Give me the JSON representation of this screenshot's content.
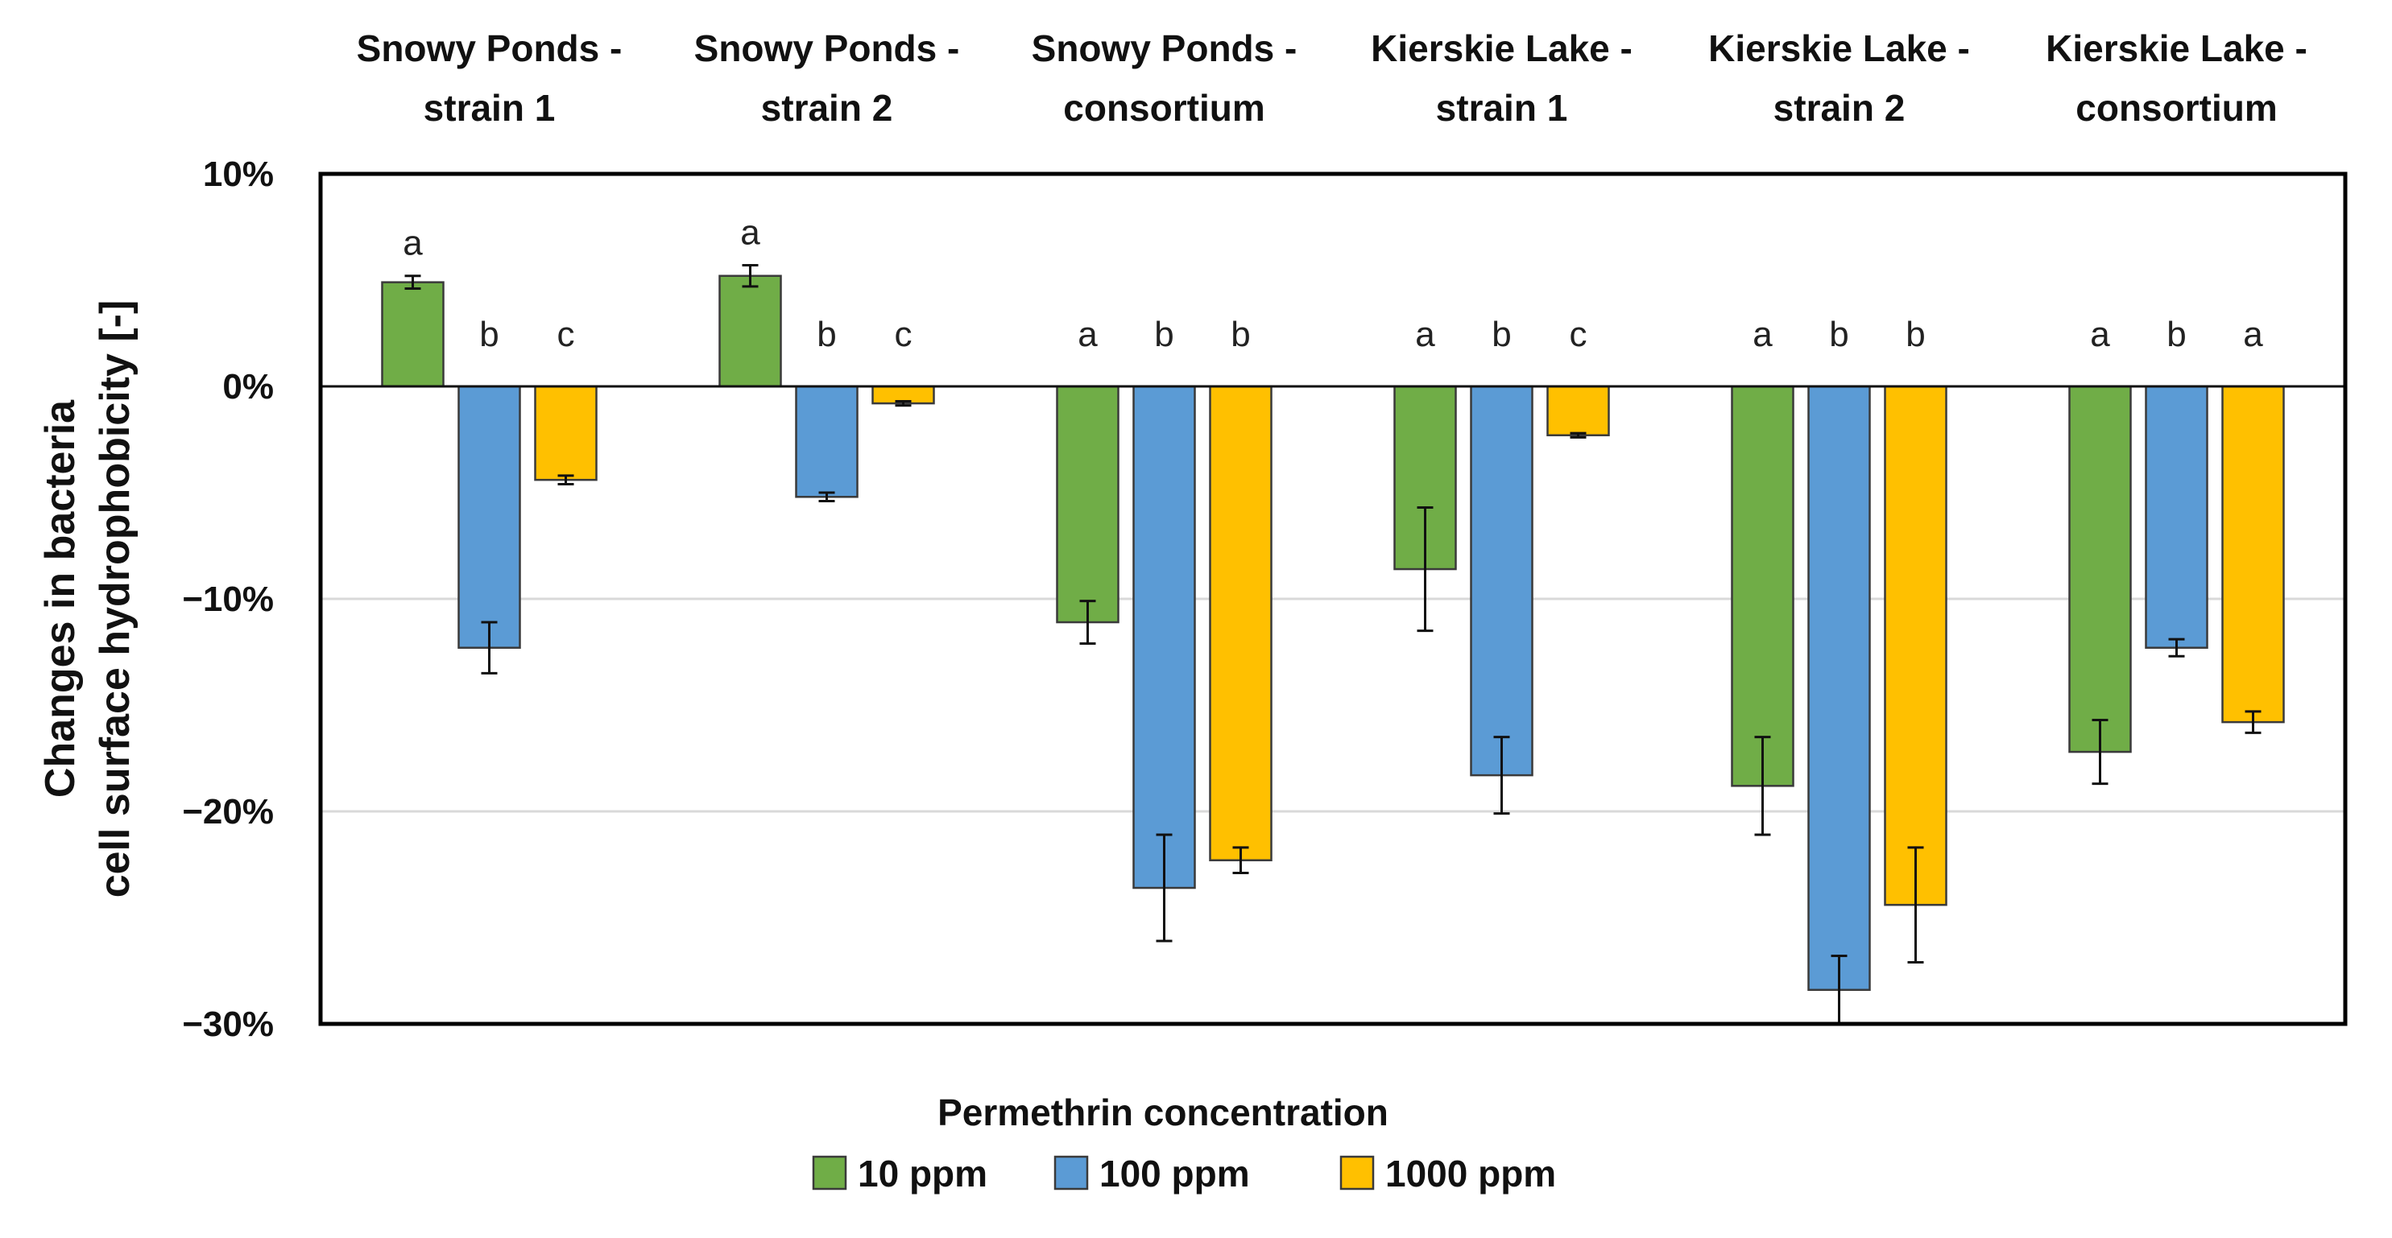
{
  "chart_data": {
    "type": "bar",
    "categories": [
      [
        "Snowy Ponds -",
        "strain 1"
      ],
      [
        "Snowy Ponds -",
        "strain 2"
      ],
      [
        "Snowy Ponds -",
        "consortium"
      ],
      [
        "Kierskie Lake -",
        "strain 1"
      ],
      [
        "Kierskie Lake -",
        "strain 2"
      ],
      [
        "Kierskie Lake -",
        "consortium"
      ]
    ],
    "series": [
      {
        "name": "10 ppm",
        "color": "#70AD47",
        "values": [
          4.9,
          5.2,
          -11.1,
          -8.6,
          -18.8,
          -17.2
        ],
        "errors": [
          0.3,
          0.5,
          1.0,
          2.9,
          2.3,
          1.5
        ],
        "labels": [
          "a",
          "a",
          "a",
          "a",
          "a",
          "a"
        ]
      },
      {
        "name": "100 ppm",
        "color": "#5B9BD5",
        "values": [
          -12.3,
          -5.2,
          -23.6,
          -18.3,
          -28.4,
          -12.3
        ],
        "errors": [
          1.2,
          0.2,
          2.5,
          1.8,
          1.6,
          0.4
        ],
        "labels": [
          "b",
          "b",
          "b",
          "b",
          "b",
          "b"
        ]
      },
      {
        "name": "1000 ppm",
        "color": "#FFC000",
        "values": [
          -4.4,
          -0.8,
          -22.3,
          -2.3,
          -24.4,
          -15.8
        ],
        "errors": [
          0.2,
          0.1,
          0.6,
          0.1,
          2.7,
          0.5
        ],
        "labels": [
          "c",
          "c",
          "b",
          "c",
          "b",
          "a"
        ]
      }
    ],
    "yticks": [
      "10%",
      "0%",
      "−10%",
      "−20%",
      "−30%"
    ],
    "ytick_values": [
      10,
      0,
      -10,
      -20,
      -30
    ],
    "ylim": [
      -30,
      10
    ],
    "ylabel_lines": [
      "Changes in bacteria",
      "cell surface hydrophobicity [-]"
    ],
    "legend_title": "Permethrin concentration",
    "grid": true,
    "legend_position": "bottom"
  }
}
